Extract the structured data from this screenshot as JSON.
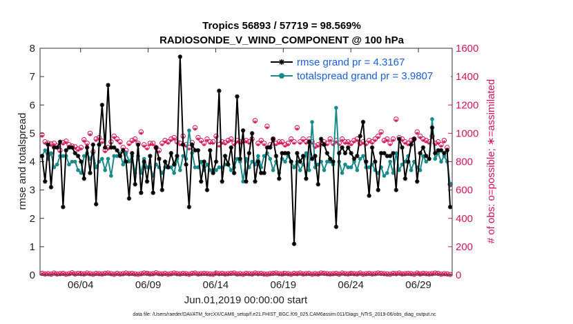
{
  "chart_data": {
    "type": "line",
    "title": "Tropics 56893 / 57719 = 98.569%",
    "subtitle": "RADIOSONDE_V_WIND_COMPONENT @ 100 hPa",
    "xlabel": "Jun.01,2019 00:00:00 start",
    "ylabel_left": "rmse and totalspread",
    "ylabel_right": "# of obs: o=possible; ∗=assimilated",
    "xlim": [
      1.0,
      31.5
    ],
    "ylim_left": [
      0,
      8
    ],
    "ylim_right": [
      0,
      1600
    ],
    "xticks": [
      4,
      9,
      14,
      19,
      24,
      29
    ],
    "xtick_labels": [
      "06/04",
      "06/09",
      "06/14",
      "06/19",
      "06/24",
      "06/29"
    ],
    "yticks_left": [
      "0",
      "1",
      "2",
      "3",
      "4",
      "5",
      "6",
      "7",
      "8"
    ],
    "yticks_right": [
      "0",
      "200",
      "400",
      "600",
      "800",
      "1000",
      "1200",
      "1400",
      "1600"
    ],
    "footnote": "data file: /Users/raeder/DAI/ATM_forcXX/CAM6_setup/f.e21.FHIST_BGC.f09_025.CAM6assim.011/Diags_NTrS_2019-06/obs_diag_output.nc",
    "colors": {
      "rmse": "#000000",
      "totalspread": "#1a8a8a",
      "obs": "#d4145a",
      "legend_text": "#1a5fd6"
    },
    "series": [
      {
        "name": "rmse grand pr = 4.3167",
        "axis": "left",
        "values": [
          4.2,
          3.3,
          4.6,
          3.1,
          4.5,
          4.5,
          4.7,
          2.4,
          4.4,
          4.5,
          4.5,
          4.3,
          4.2,
          4.0,
          3.4,
          4.5,
          3.6,
          4.6,
          2.5,
          4.6,
          6.0,
          4.5,
          6.7,
          4.5,
          4.5,
          4.4,
          4.2,
          4.4,
          4.0,
          2.7,
          4.3,
          3.2,
          4.6,
          2.9,
          4.0,
          3.3,
          4.2,
          2.9,
          4.5,
          4.1,
          3.0,
          4.0,
          3.8,
          4.3,
          3.9,
          4.2,
          7.7,
          4.6,
          3.9,
          2.4,
          4.6,
          4.4,
          4.4,
          3.3,
          4.0,
          3.0,
          4.4,
          3.6,
          4.0,
          6.5,
          3.3,
          4.2,
          3.9,
          4.5,
          3.6,
          6.3,
          4.1,
          5.1,
          3.3,
          4.3,
          5.0,
          3.3,
          4.0,
          3.6,
          3.6,
          4.5,
          4.5,
          4.8,
          4.2,
          3.4,
          4.3,
          4.3,
          4.3,
          4.0,
          1.1,
          4.3,
          4.0,
          4.2,
          3.4,
          4.7,
          4.1,
          4.2,
          3.2,
          4.8,
          4.6,
          4.3,
          4.1,
          4.0,
          1.7,
          4.3,
          4.5,
          4.3,
          4.5,
          4.3,
          4.1,
          4.2,
          4.9,
          5.4,
          4.0,
          2.8,
          4.5,
          4.0,
          3.0,
          4.3,
          4.3,
          4.2,
          4.2,
          4.3,
          3.0,
          4.8,
          4.5,
          3.4,
          4.0,
          4.6,
          4.8,
          3.3,
          4.3,
          4.5,
          4.2,
          4.1,
          5.2,
          4.3,
          4.4,
          4.4,
          4.3,
          4.4,
          2.4
        ]
      },
      {
        "name": "totalspread grand pr = 3.9807",
        "axis": "left",
        "values": [
          4.2,
          4.4,
          4.1,
          4.3,
          3.8,
          3.9,
          4.2,
          4.2,
          4.2,
          3.9,
          4.0,
          4.0,
          3.7,
          3.6,
          4.2,
          4.3,
          4.1,
          4.3,
          3.8,
          4.0,
          4.1,
          3.7,
          4.1,
          3.5,
          4.2,
          4.2,
          4.3,
          3.9,
          4.3,
          4.0,
          4.2,
          3.6,
          4.2,
          3.6,
          4.1,
          3.8,
          3.8,
          3.5,
          3.9,
          3.8,
          3.6,
          3.8,
          3.8,
          3.8,
          3.6,
          4.1,
          3.7,
          4.2,
          4.1,
          5.1,
          4.3,
          3.8,
          3.8,
          4.0,
          3.7,
          3.9,
          3.7,
          3.7,
          3.7,
          3.8,
          3.8,
          3.9,
          3.9,
          3.7,
          3.8,
          4.1,
          4.0,
          3.3,
          4.1,
          3.8,
          4.0,
          3.9,
          4.2,
          3.8,
          4.2,
          4.3,
          4.1,
          3.7,
          4.0,
          3.6,
          4.1,
          4.0,
          4.2,
          4.0,
          3.8,
          4.0,
          3.7,
          3.9,
          4.3,
          3.7,
          5.4,
          3.8,
          3.9,
          4.0,
          3.7,
          4.0,
          4.0,
          3.9,
          5.9,
          4.0,
          3.6,
          3.9,
          3.8,
          3.8,
          4.0,
          3.7,
          4.1,
          4.2,
          3.8,
          3.8,
          3.9,
          3.7,
          3.6,
          3.8,
          3.5,
          3.6,
          4.0,
          3.6,
          4.3,
          3.7,
          3.9,
          4.0,
          4.2,
          3.7,
          4.0,
          3.8,
          3.7,
          4.2,
          4.0,
          4.1,
          5.5,
          4.1,
          4.3,
          4.0,
          4.2,
          4.0,
          3.2
        ]
      },
      {
        "name": "possible",
        "axis": "right",
        "values": [
          990,
          940,
          930,
          925,
          930,
          910,
          880,
          935,
          945,
          920,
          910,
          905,
          890,
          900,
          955,
          930,
          1000,
          870,
          960,
          970,
          945,
          880,
          900,
          940,
          980,
          960,
          940,
          900,
          880,
          930,
          950,
          960,
          930,
          1010,
          920,
          900,
          930,
          930,
          900,
          880,
          930,
          950,
          940,
          960,
          970,
          940,
          930,
          980,
          920,
          900,
          935,
          1040,
          970,
          950,
          930,
          960,
          940,
          940,
          980,
          920,
          940,
          935,
          950,
          960,
          930,
          950,
          940,
          945,
          950,
          940,
          960,
          1090,
          930,
          950,
          930,
          1050,
          920,
          960,
          930,
          940,
          940,
          920,
          930,
          960,
          940,
          1040,
          940,
          960,
          940,
          960,
          940,
          910,
          920,
          930,
          940,
          930,
          960,
          930,
          950,
          930,
          960,
          940,
          940,
          930,
          950,
          960,
          930,
          940,
          930,
          950,
          940,
          960,
          980,
          1010,
          950,
          960,
          930,
          960,
          1100,
          970,
          960,
          940,
          930,
          950,
          960,
          1010,
          980,
          960,
          950,
          940,
          980,
          930,
          940,
          920,
          950,
          900,
          640
        ],
        "baseline_values": [
          12,
          8,
          10,
          6,
          14,
          8,
          10,
          12,
          6,
          10,
          16,
          8,
          12,
          10,
          8,
          14,
          10,
          6,
          12,
          10,
          8,
          12,
          14,
          10,
          6,
          12,
          8,
          10,
          14,
          10,
          12,
          8,
          6,
          10,
          14,
          12,
          8,
          10,
          16,
          10,
          8,
          12,
          6,
          10,
          14,
          10,
          8,
          12,
          10,
          6,
          12,
          14,
          8,
          10,
          12,
          10,
          8,
          6,
          14,
          10,
          12,
          8,
          10,
          12,
          14,
          8,
          10,
          6,
          12,
          10,
          8,
          14,
          10,
          12,
          8,
          6,
          10,
          12,
          14,
          10,
          8,
          12,
          10,
          6,
          12,
          10,
          14,
          8,
          10,
          12,
          6,
          10,
          8,
          14,
          12,
          10,
          8,
          10,
          12,
          6,
          14,
          10,
          8,
          12,
          10,
          8,
          14,
          6,
          10,
          12,
          8,
          10,
          14,
          12,
          10,
          8,
          6,
          12,
          10,
          14,
          8,
          10,
          12,
          10,
          6,
          14,
          8,
          12,
          10,
          8,
          10,
          14,
          12,
          6,
          10,
          8,
          4
        ]
      },
      {
        "name": "assimilated",
        "axis": "right",
        "values": [
          980,
          930,
          920,
          915,
          920,
          900,
          870,
          925,
          935,
          910,
          900,
          895,
          880,
          890,
          945,
          920,
          990,
          860,
          950,
          960,
          935,
          870,
          890,
          930,
          970,
          950,
          930,
          890,
          870,
          920,
          940,
          950,
          920,
          1000,
          910,
          890,
          920,
          920,
          890,
          870,
          920,
          940,
          930,
          950,
          960,
          930,
          920,
          970,
          910,
          890,
          925,
          1030,
          960,
          940,
          920,
          950,
          930,
          930,
          970,
          910,
          930,
          925,
          940,
          950,
          920,
          940,
          930,
          935,
          940,
          930,
          950,
          1080,
          920,
          940,
          920,
          1040,
          910,
          950,
          920,
          930,
          930,
          910,
          920,
          950,
          930,
          1030,
          930,
          950,
          930,
          950,
          930,
          900,
          910,
          920,
          930,
          920,
          950,
          920,
          940,
          920,
          950,
          930,
          930,
          920,
          940,
          950,
          920,
          930,
          920,
          940,
          930,
          950,
          970,
          1000,
          940,
          950,
          920,
          950,
          1090,
          960,
          950,
          930,
          920,
          940,
          950,
          1000,
          970,
          950,
          940,
          930,
          970,
          920,
          930,
          910,
          940,
          890,
          630
        ],
        "baseline_values": [
          10,
          6,
          8,
          4,
          12,
          6,
          8,
          10,
          4,
          8,
          14,
          6,
          10,
          8,
          6,
          12,
          8,
          4,
          10,
          8,
          6,
          10,
          12,
          8,
          4,
          10,
          6,
          8,
          12,
          8,
          10,
          6,
          4,
          8,
          12,
          10,
          6,
          8,
          14,
          8,
          6,
          10,
          4,
          8,
          12,
          8,
          6,
          10,
          8,
          4,
          10,
          12,
          6,
          8,
          10,
          8,
          6,
          4,
          12,
          8,
          10,
          6,
          8,
          10,
          12,
          6,
          8,
          4,
          10,
          8,
          6,
          12,
          8,
          10,
          6,
          4,
          8,
          10,
          12,
          8,
          6,
          10,
          8,
          4,
          10,
          8,
          12,
          6,
          8,
          10,
          4,
          8,
          6,
          12,
          10,
          8,
          6,
          8,
          10,
          4,
          12,
          8,
          6,
          10,
          8,
          6,
          12,
          4,
          8,
          10,
          6,
          8,
          12,
          10,
          8,
          6,
          4,
          10,
          8,
          12,
          6,
          8,
          10,
          8,
          4,
          12,
          6,
          10,
          8,
          6,
          8,
          12,
          10,
          4,
          8,
          6,
          2
        ]
      }
    ]
  }
}
